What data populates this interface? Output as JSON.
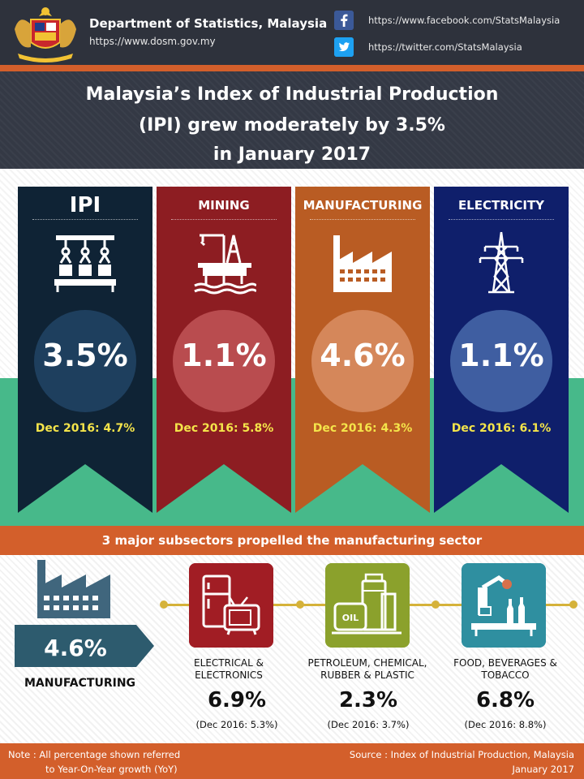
{
  "header": {
    "org_name": "Department of Statistics, Malaysia",
    "org_url": "https://www.dosm.gov.my",
    "facebook_url": "https://www.facebook.com/StatsMalaysia",
    "twitter_url": "https://twitter.com/StatsMalaysia",
    "icons": [
      "malaysia-crest-icon",
      "facebook-icon",
      "twitter-icon"
    ]
  },
  "title": {
    "line1": "Malaysia’s Index of Industrial Production",
    "line2": "(IPI) grew moderately by 3.5%",
    "line3": "in January 2017"
  },
  "sectors": [
    {
      "name": "IPI",
      "value": "3.5%",
      "previous": "Dec 2016: 4.7%",
      "icon": "robotic-arms-icon",
      "color": "#0f2335"
    },
    {
      "name": "MINING",
      "value": "1.1%",
      "previous": "Dec 2016: 5.8%",
      "icon": "oil-rig-icon",
      "color": "#8d1d22"
    },
    {
      "name": "MANUFACTURING",
      "value": "4.6%",
      "previous": "Dec 2016: 4.3%",
      "icon": "factory-icon",
      "color": "#b95c23"
    },
    {
      "name": "ELECTRICITY",
      "value": "1.1%",
      "previous": "Dec 2016: 6.1%",
      "icon": "power-tower-icon",
      "color": "#0f1f6b"
    }
  ],
  "subsector_section": {
    "banner": "3 major subsectors propelled the manufacturing sector",
    "manufacturing_value": "4.6%",
    "manufacturing_label": "MANUFACTURING",
    "subsectors": [
      {
        "name_line1": "ELECTRICAL &",
        "name_line2": "ELECTRONICS",
        "value": "6.9%",
        "previous": "(Dec 2016: 5.3%)",
        "icon": "appliances-icon",
        "color": "#a11d24"
      },
      {
        "name_line1": "PETROLEUM, CHEMICAL,",
        "name_line2": "RUBBER & PLASTIC",
        "value": "2.3%",
        "previous": "(Dec 2016: 3.7%)",
        "icon": "oil-tanks-icon",
        "color": "#8ba12c"
      },
      {
        "name_line1": "FOOD, BEVERAGES &",
        "name_line2": "TOBACCO",
        "value": "6.8%",
        "previous": "(Dec 2016: 8.8%)",
        "icon": "bottling-line-icon",
        "color": "#2f8fa0"
      }
    ]
  },
  "footer": {
    "note_line1": "Note : All percentage shown referred",
    "note_line2": "to Year-On-Year growth (YoY)",
    "source_line1": "Source : Index of Industrial Production, Malaysia",
    "source_line2": "January 2017"
  }
}
